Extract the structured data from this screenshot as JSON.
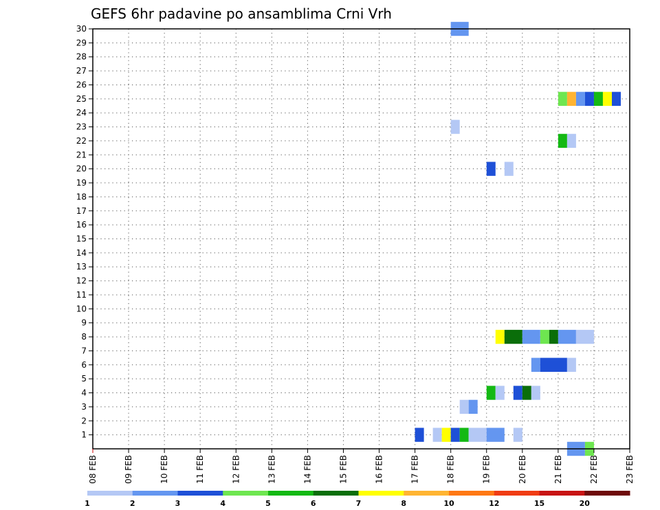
{
  "chart_data": {
    "type": "heatmap",
    "title": "GEFS 6hr padavine po ansamblima Crni Vrh",
    "xlabel": "",
    "ylabel": "",
    "x_ticks": [
      "08 FEB",
      "09 FEB",
      "10 FEB",
      "11 FEB",
      "12 FEB",
      "13 FEB",
      "14 FEB",
      "15 FEB",
      "16 FEB",
      "17 FEB",
      "18 FEB",
      "19 FEB",
      "20 FEB",
      "21 FEB",
      "22 FEB",
      "23 FEB"
    ],
    "x_range_days": [
      0,
      15
    ],
    "y_ticks": [
      1,
      2,
      3,
      4,
      5,
      6,
      7,
      8,
      9,
      10,
      11,
      12,
      13,
      14,
      15,
      16,
      17,
      18,
      19,
      20,
      21,
      22,
      23,
      24,
      25,
      26,
      27,
      28,
      29,
      30
    ],
    "y_range": [
      0,
      30
    ],
    "grid": true,
    "color_scale": {
      "labels": [
        "1",
        "2",
        "3",
        "4",
        "5",
        "6",
        "7",
        "8",
        "10",
        "12",
        "15",
        "20"
      ],
      "colors": [
        "#b4c8f5",
        "#6496f0",
        "#1e50d7",
        "#6ee650",
        "#14b914",
        "#0a6e0a",
        "#ffff00",
        "#ffb432",
        "#ff7814",
        "#f03c14",
        "#c81414",
        "#6e0a0a"
      ]
    },
    "cells": [
      {
        "member": 30,
        "day": 10.0,
        "dur": 0.5,
        "level": 2
      },
      {
        "member": 25,
        "day": 13.0,
        "dur": 0.25,
        "level": 4
      },
      {
        "member": 25,
        "day": 13.25,
        "dur": 0.25,
        "level": 8
      },
      {
        "member": 25,
        "day": 13.5,
        "dur": 0.25,
        "level": 2
      },
      {
        "member": 25,
        "day": 13.75,
        "dur": 0.25,
        "level": 3
      },
      {
        "member": 25,
        "day": 14.0,
        "dur": 0.25,
        "level": 5
      },
      {
        "member": 25,
        "day": 14.25,
        "dur": 0.25,
        "level": 7
      },
      {
        "member": 25,
        "day": 14.5,
        "dur": 0.25,
        "level": 3
      },
      {
        "member": 23,
        "day": 10.0,
        "dur": 0.25,
        "level": 1
      },
      {
        "member": 22,
        "day": 13.0,
        "dur": 0.25,
        "level": 5
      },
      {
        "member": 22,
        "day": 13.25,
        "dur": 0.25,
        "level": 1
      },
      {
        "member": 20,
        "day": 11.0,
        "dur": 0.25,
        "level": 3
      },
      {
        "member": 20,
        "day": 11.5,
        "dur": 0.25,
        "level": 1
      },
      {
        "member": 8,
        "day": 11.25,
        "dur": 0.25,
        "level": 7
      },
      {
        "member": 8,
        "day": 11.5,
        "dur": 0.5,
        "level": 6
      },
      {
        "member": 8,
        "day": 12.0,
        "dur": 0.5,
        "level": 2
      },
      {
        "member": 8,
        "day": 12.5,
        "dur": 0.25,
        "level": 4
      },
      {
        "member": 8,
        "day": 12.75,
        "dur": 0.25,
        "level": 6
      },
      {
        "member": 8,
        "day": 13.0,
        "dur": 0.5,
        "level": 2
      },
      {
        "member": 8,
        "day": 13.5,
        "dur": 0.5,
        "level": 1
      },
      {
        "member": 6,
        "day": 12.25,
        "dur": 0.25,
        "level": 2
      },
      {
        "member": 6,
        "day": 12.5,
        "dur": 0.75,
        "level": 3
      },
      {
        "member": 6,
        "day": 13.25,
        "dur": 0.25,
        "level": 1
      },
      {
        "member": 4,
        "day": 11.0,
        "dur": 0.25,
        "level": 5
      },
      {
        "member": 4,
        "day": 11.25,
        "dur": 0.25,
        "level": 1
      },
      {
        "member": 4,
        "day": 11.75,
        "dur": 0.25,
        "level": 3
      },
      {
        "member": 4,
        "day": 12.0,
        "dur": 0.25,
        "level": 6
      },
      {
        "member": 4,
        "day": 12.25,
        "dur": 0.25,
        "level": 1
      },
      {
        "member": 3,
        "day": 10.25,
        "dur": 0.25,
        "level": 1
      },
      {
        "member": 3,
        "day": 10.5,
        "dur": 0.25,
        "level": 2
      },
      {
        "member": 1,
        "day": 9.0,
        "dur": 0.25,
        "level": 3
      },
      {
        "member": 1,
        "day": 9.5,
        "dur": 0.25,
        "level": 1
      },
      {
        "member": 1,
        "day": 9.75,
        "dur": 0.25,
        "level": 7
      },
      {
        "member": 1,
        "day": 10.0,
        "dur": 0.25,
        "level": 3
      },
      {
        "member": 1,
        "day": 10.25,
        "dur": 0.25,
        "level": 5
      },
      {
        "member": 1,
        "day": 10.5,
        "dur": 0.5,
        "level": 1
      },
      {
        "member": 1,
        "day": 11.0,
        "dur": 0.5,
        "level": 2
      },
      {
        "member": 1,
        "day": 11.75,
        "dur": 0.25,
        "level": 1
      },
      {
        "member": 0,
        "day": 13.25,
        "dur": 0.5,
        "level": 2
      },
      {
        "member": 0,
        "day": 13.75,
        "dur": 0.25,
        "level": 4
      }
    ]
  }
}
